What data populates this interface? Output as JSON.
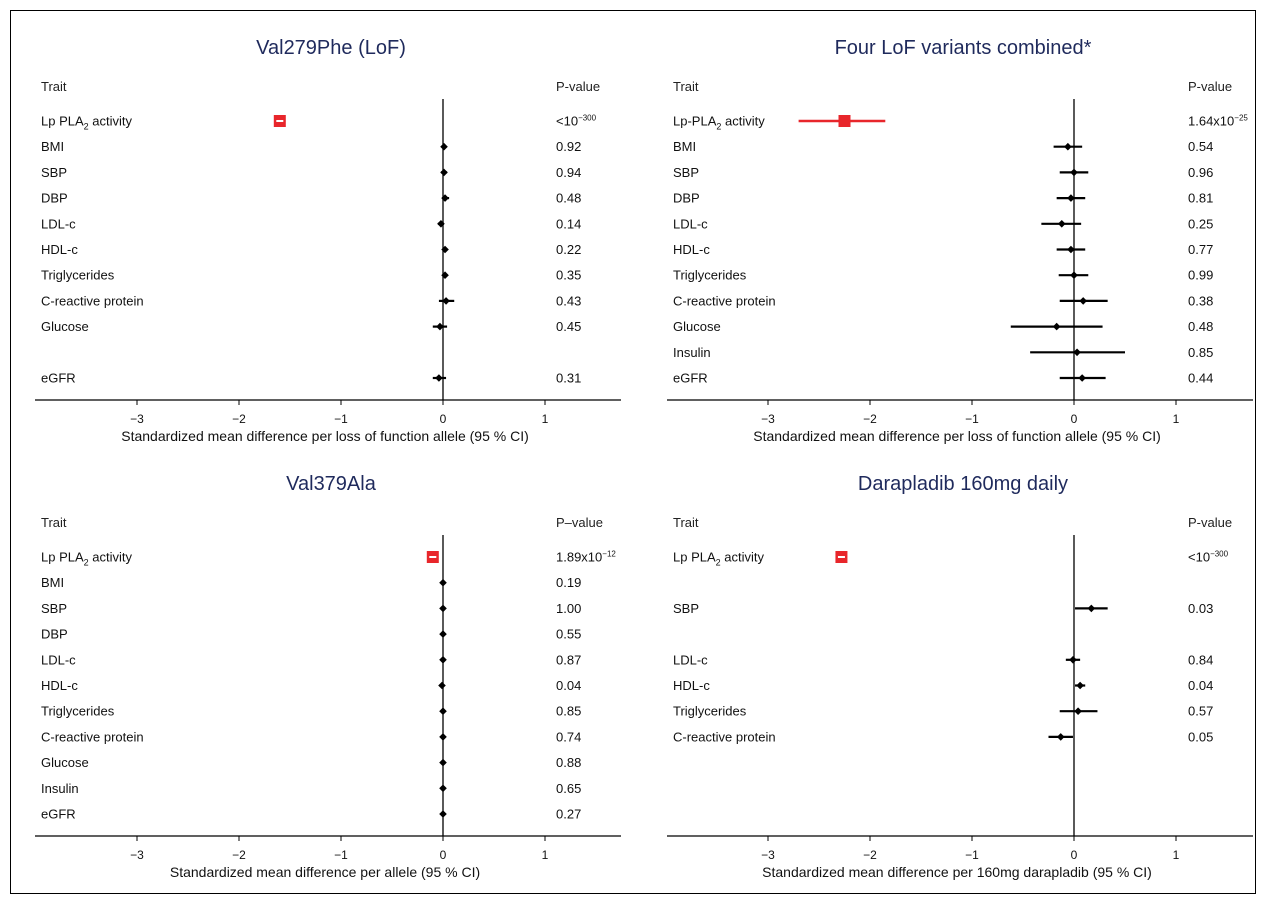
{
  "colors": {
    "highlight": "#e8262b",
    "ink": "#000000",
    "title": "#1f2a5c"
  },
  "chart_data": [
    {
      "type": "forest",
      "title": "Val279Phe (LoF)",
      "trait_header": "Trait",
      "pvalue_header": "P-value",
      "xlabel": "Standardized mean difference per loss of function allele (95 % CI)",
      "xlim": [
        -4,
        1.7
      ],
      "xticks": [
        -3,
        -2,
        -1,
        0,
        1
      ],
      "xtick_labels": [
        "−3",
        "−2",
        "−1",
        "0",
        "1"
      ],
      "rows": [
        {
          "trait": "Lp PLA",
          "sub": "2",
          "trait_suffix": " activity",
          "est": -1.6,
          "lo": -1.64,
          "hi": -1.56,
          "p_base": "<10",
          "p_exp": "−300",
          "highlight": true
        },
        {
          "trait": "BMI",
          "est": 0.01,
          "lo": -0.01,
          "hi": 0.03,
          "p_base": "0.92"
        },
        {
          "trait": "SBP",
          "est": 0.01,
          "lo": -0.02,
          "hi": 0.04,
          "p_base": "0.94"
        },
        {
          "trait": "DBP",
          "est": 0.02,
          "lo": -0.01,
          "hi": 0.06,
          "p_base": "0.48"
        },
        {
          "trait": "LDL-c",
          "est": -0.02,
          "lo": -0.05,
          "hi": 0.01,
          "p_base": "0.14"
        },
        {
          "trait": "HDL-c",
          "est": 0.02,
          "lo": 0.0,
          "hi": 0.04,
          "p_base": "0.22"
        },
        {
          "trait": "Triglycerides",
          "est": 0.02,
          "lo": 0.0,
          "hi": 0.04,
          "p_base": "0.35"
        },
        {
          "trait": "C-reactive protein",
          "est": 0.03,
          "lo": -0.04,
          "hi": 0.11,
          "p_base": "0.43"
        },
        {
          "trait": "Glucose",
          "est": -0.03,
          "lo": -0.1,
          "hi": 0.04,
          "p_base": "0.45"
        },
        {
          "trait": "",
          "empty": true
        },
        {
          "trait": "eGFR",
          "est": -0.04,
          "lo": -0.1,
          "hi": 0.03,
          "p_base": "0.31"
        }
      ]
    },
    {
      "type": "forest",
      "title": "Four LoF variants combined*",
      "trait_header": "Trait",
      "pvalue_header": "P-value",
      "xlabel": "Standardized mean difference per loss of function allele (95 % CI)",
      "xlim": [
        -4,
        1.7
      ],
      "xticks": [
        -3,
        -2,
        -1,
        0,
        1
      ],
      "xtick_labels": [
        "−3",
        "−2",
        "−1",
        "0",
        "1"
      ],
      "rows": [
        {
          "trait": "Lp-PLA",
          "sub": "2",
          "trait_suffix": " activity",
          "est": -2.25,
          "lo": -2.7,
          "hi": -1.85,
          "p_base": "1.64x10",
          "p_exp": "−25",
          "highlight": true
        },
        {
          "trait": "BMI",
          "est": -0.06,
          "lo": -0.2,
          "hi": 0.08,
          "p_base": "0.54"
        },
        {
          "trait": "SBP",
          "est": 0.0,
          "lo": -0.14,
          "hi": 0.14,
          "p_base": "0.96"
        },
        {
          "trait": "DBP",
          "est": -0.03,
          "lo": -0.17,
          "hi": 0.11,
          "p_base": "0.81"
        },
        {
          "trait": "LDL-c",
          "est": -0.12,
          "lo": -0.32,
          "hi": 0.07,
          "p_base": "0.25"
        },
        {
          "trait": "HDL-c",
          "est": -0.03,
          "lo": -0.17,
          "hi": 0.11,
          "p_base": "0.77"
        },
        {
          "trait": "Triglycerides",
          "est": 0.0,
          "lo": -0.15,
          "hi": 0.14,
          "p_base": "0.99"
        },
        {
          "trait": "C-reactive protein",
          "est": 0.09,
          "lo": -0.14,
          "hi": 0.33,
          "p_base": "0.38"
        },
        {
          "trait": "Glucose",
          "est": -0.17,
          "lo": -0.62,
          "hi": 0.28,
          "p_base": "0.48"
        },
        {
          "trait": "Insulin",
          "est": 0.03,
          "lo": -0.43,
          "hi": 0.5,
          "p_base": "0.85"
        },
        {
          "trait": "eGFR",
          "est": 0.08,
          "lo": -0.14,
          "hi": 0.31,
          "p_base": "0.44"
        }
      ]
    },
    {
      "type": "forest",
      "title": "Val379Ala",
      "trait_header": "Trait",
      "pvalue_header": "P–value",
      "xlabel": "Standardized mean difference per allele (95 % CI)",
      "xlim": [
        -4,
        1.7
      ],
      "xticks": [
        -3,
        -2,
        -1,
        0,
        1
      ],
      "xtick_labels": [
        "−3",
        "−2",
        "−1",
        "0",
        "1"
      ],
      "rows": [
        {
          "trait": "Lp PLA",
          "sub": "2",
          "trait_suffix": " activity",
          "est": -0.1,
          "lo": -0.14,
          "hi": -0.06,
          "p_base": "1.89x10",
          "p_exp": "−12",
          "highlight": true
        },
        {
          "trait": "BMI",
          "est": 0.0,
          "lo": -0.01,
          "hi": 0.01,
          "p_base": "0.19"
        },
        {
          "trait": "SBP",
          "est": 0.0,
          "lo": -0.01,
          "hi": 0.01,
          "p_base": "1.00"
        },
        {
          "trait": "DBP",
          "est": 0.0,
          "lo": -0.01,
          "hi": 0.01,
          "p_base": "0.55"
        },
        {
          "trait": "LDL-c",
          "est": 0.0,
          "lo": -0.01,
          "hi": 0.01,
          "p_base": "0.87"
        },
        {
          "trait": "HDL-c",
          "est": -0.01,
          "lo": -0.02,
          "hi": 0.0,
          "p_base": "0.04"
        },
        {
          "trait": "Triglycerides",
          "est": 0.0,
          "lo": -0.01,
          "hi": 0.01,
          "p_base": "0.85"
        },
        {
          "trait": "C-reactive protein",
          "est": 0.0,
          "lo": -0.01,
          "hi": 0.01,
          "p_base": "0.74"
        },
        {
          "trait": "Glucose",
          "est": 0.0,
          "lo": -0.01,
          "hi": 0.01,
          "p_base": "0.88"
        },
        {
          "trait": "Insulin",
          "est": 0.0,
          "lo": -0.01,
          "hi": 0.01,
          "p_base": "0.65"
        },
        {
          "trait": "eGFR",
          "est": 0.0,
          "lo": -0.01,
          "hi": 0.01,
          "p_base": "0.27"
        }
      ]
    },
    {
      "type": "forest",
      "title": "Darapladib 160mg daily",
      "trait_header": "Trait",
      "pvalue_header": "P-value",
      "xlabel": "Standardized mean difference per 160mg darapladib (95 % CI)",
      "xlim": [
        -4,
        1.7
      ],
      "xticks": [
        -3,
        -2,
        -1,
        0,
        1
      ],
      "xtick_labels": [
        "−3",
        "−2",
        "−1",
        "0",
        "1"
      ],
      "rows": [
        {
          "trait": "Lp PLA",
          "sub": "2",
          "trait_suffix": " activity",
          "est": -2.28,
          "lo": -2.32,
          "hi": -2.24,
          "p_base": "<10",
          "p_exp": "−300",
          "highlight": true
        },
        {
          "trait": "",
          "empty": true
        },
        {
          "trait": "SBP",
          "est": 0.17,
          "lo": 0.01,
          "hi": 0.33,
          "p_base": "0.03"
        },
        {
          "trait": "",
          "empty": true
        },
        {
          "trait": "LDL-c",
          "est": -0.01,
          "lo": -0.08,
          "hi": 0.06,
          "p_base": "0.84"
        },
        {
          "trait": "HDL-c",
          "est": 0.06,
          "lo": 0.01,
          "hi": 0.11,
          "p_base": "0.04"
        },
        {
          "trait": "Triglycerides",
          "est": 0.04,
          "lo": -0.14,
          "hi": 0.23,
          "p_base": "0.57"
        },
        {
          "trait": "C-reactive protein",
          "est": -0.13,
          "lo": -0.25,
          "hi": -0.01,
          "p_base": "0.05"
        },
        {
          "trait": "",
          "empty": true
        },
        {
          "trait": "",
          "empty": true
        },
        {
          "trait": "",
          "empty": true
        }
      ]
    }
  ]
}
